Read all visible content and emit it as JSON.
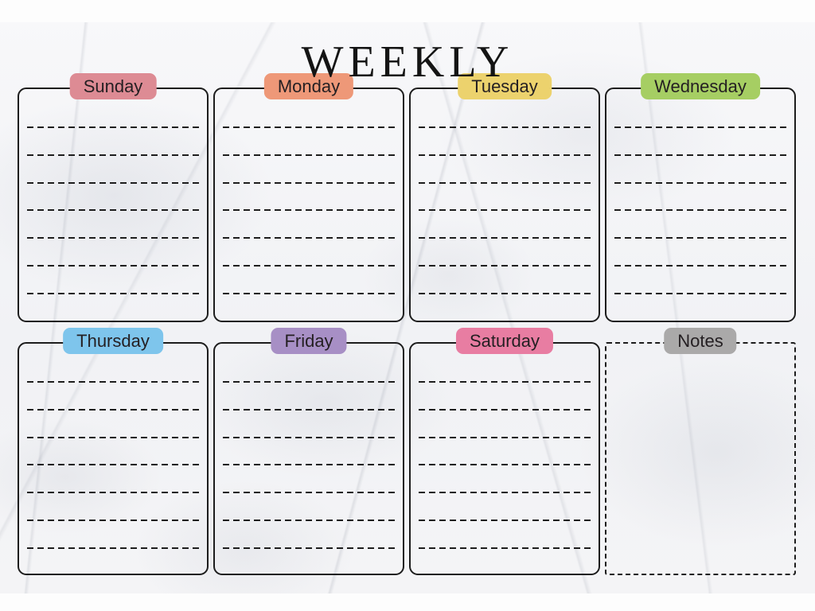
{
  "title": "WEEKLY",
  "panels": [
    {
      "id": "sunday",
      "label": "Sunday",
      "color": "#dd8b94",
      "type": "day",
      "lines": 7,
      "border": "solid"
    },
    {
      "id": "monday",
      "label": "Monday",
      "color": "#ee9878",
      "type": "day",
      "lines": 7,
      "border": "solid"
    },
    {
      "id": "tuesday",
      "label": "Tuesday",
      "color": "#ecd26d",
      "type": "day",
      "lines": 7,
      "border": "solid"
    },
    {
      "id": "wednesday",
      "label": "Wednesday",
      "color": "#a6ce63",
      "type": "day",
      "lines": 7,
      "border": "solid"
    },
    {
      "id": "thursday",
      "label": "Thursday",
      "color": "#7ec5ec",
      "type": "day",
      "lines": 7,
      "border": "solid"
    },
    {
      "id": "friday",
      "label": "Friday",
      "color": "#a78fc5",
      "type": "day",
      "lines": 7,
      "border": "solid"
    },
    {
      "id": "saturday",
      "label": "Saturday",
      "color": "#e87da2",
      "type": "day",
      "lines": 7,
      "border": "solid"
    },
    {
      "id": "notes",
      "label": "Notes",
      "color": "#aaa9a9",
      "type": "notes",
      "lines": 0,
      "border": "dashed"
    }
  ],
  "colors": {
    "line": "#1d1d1d",
    "border": "#1d1d1d",
    "title": "#141414"
  }
}
